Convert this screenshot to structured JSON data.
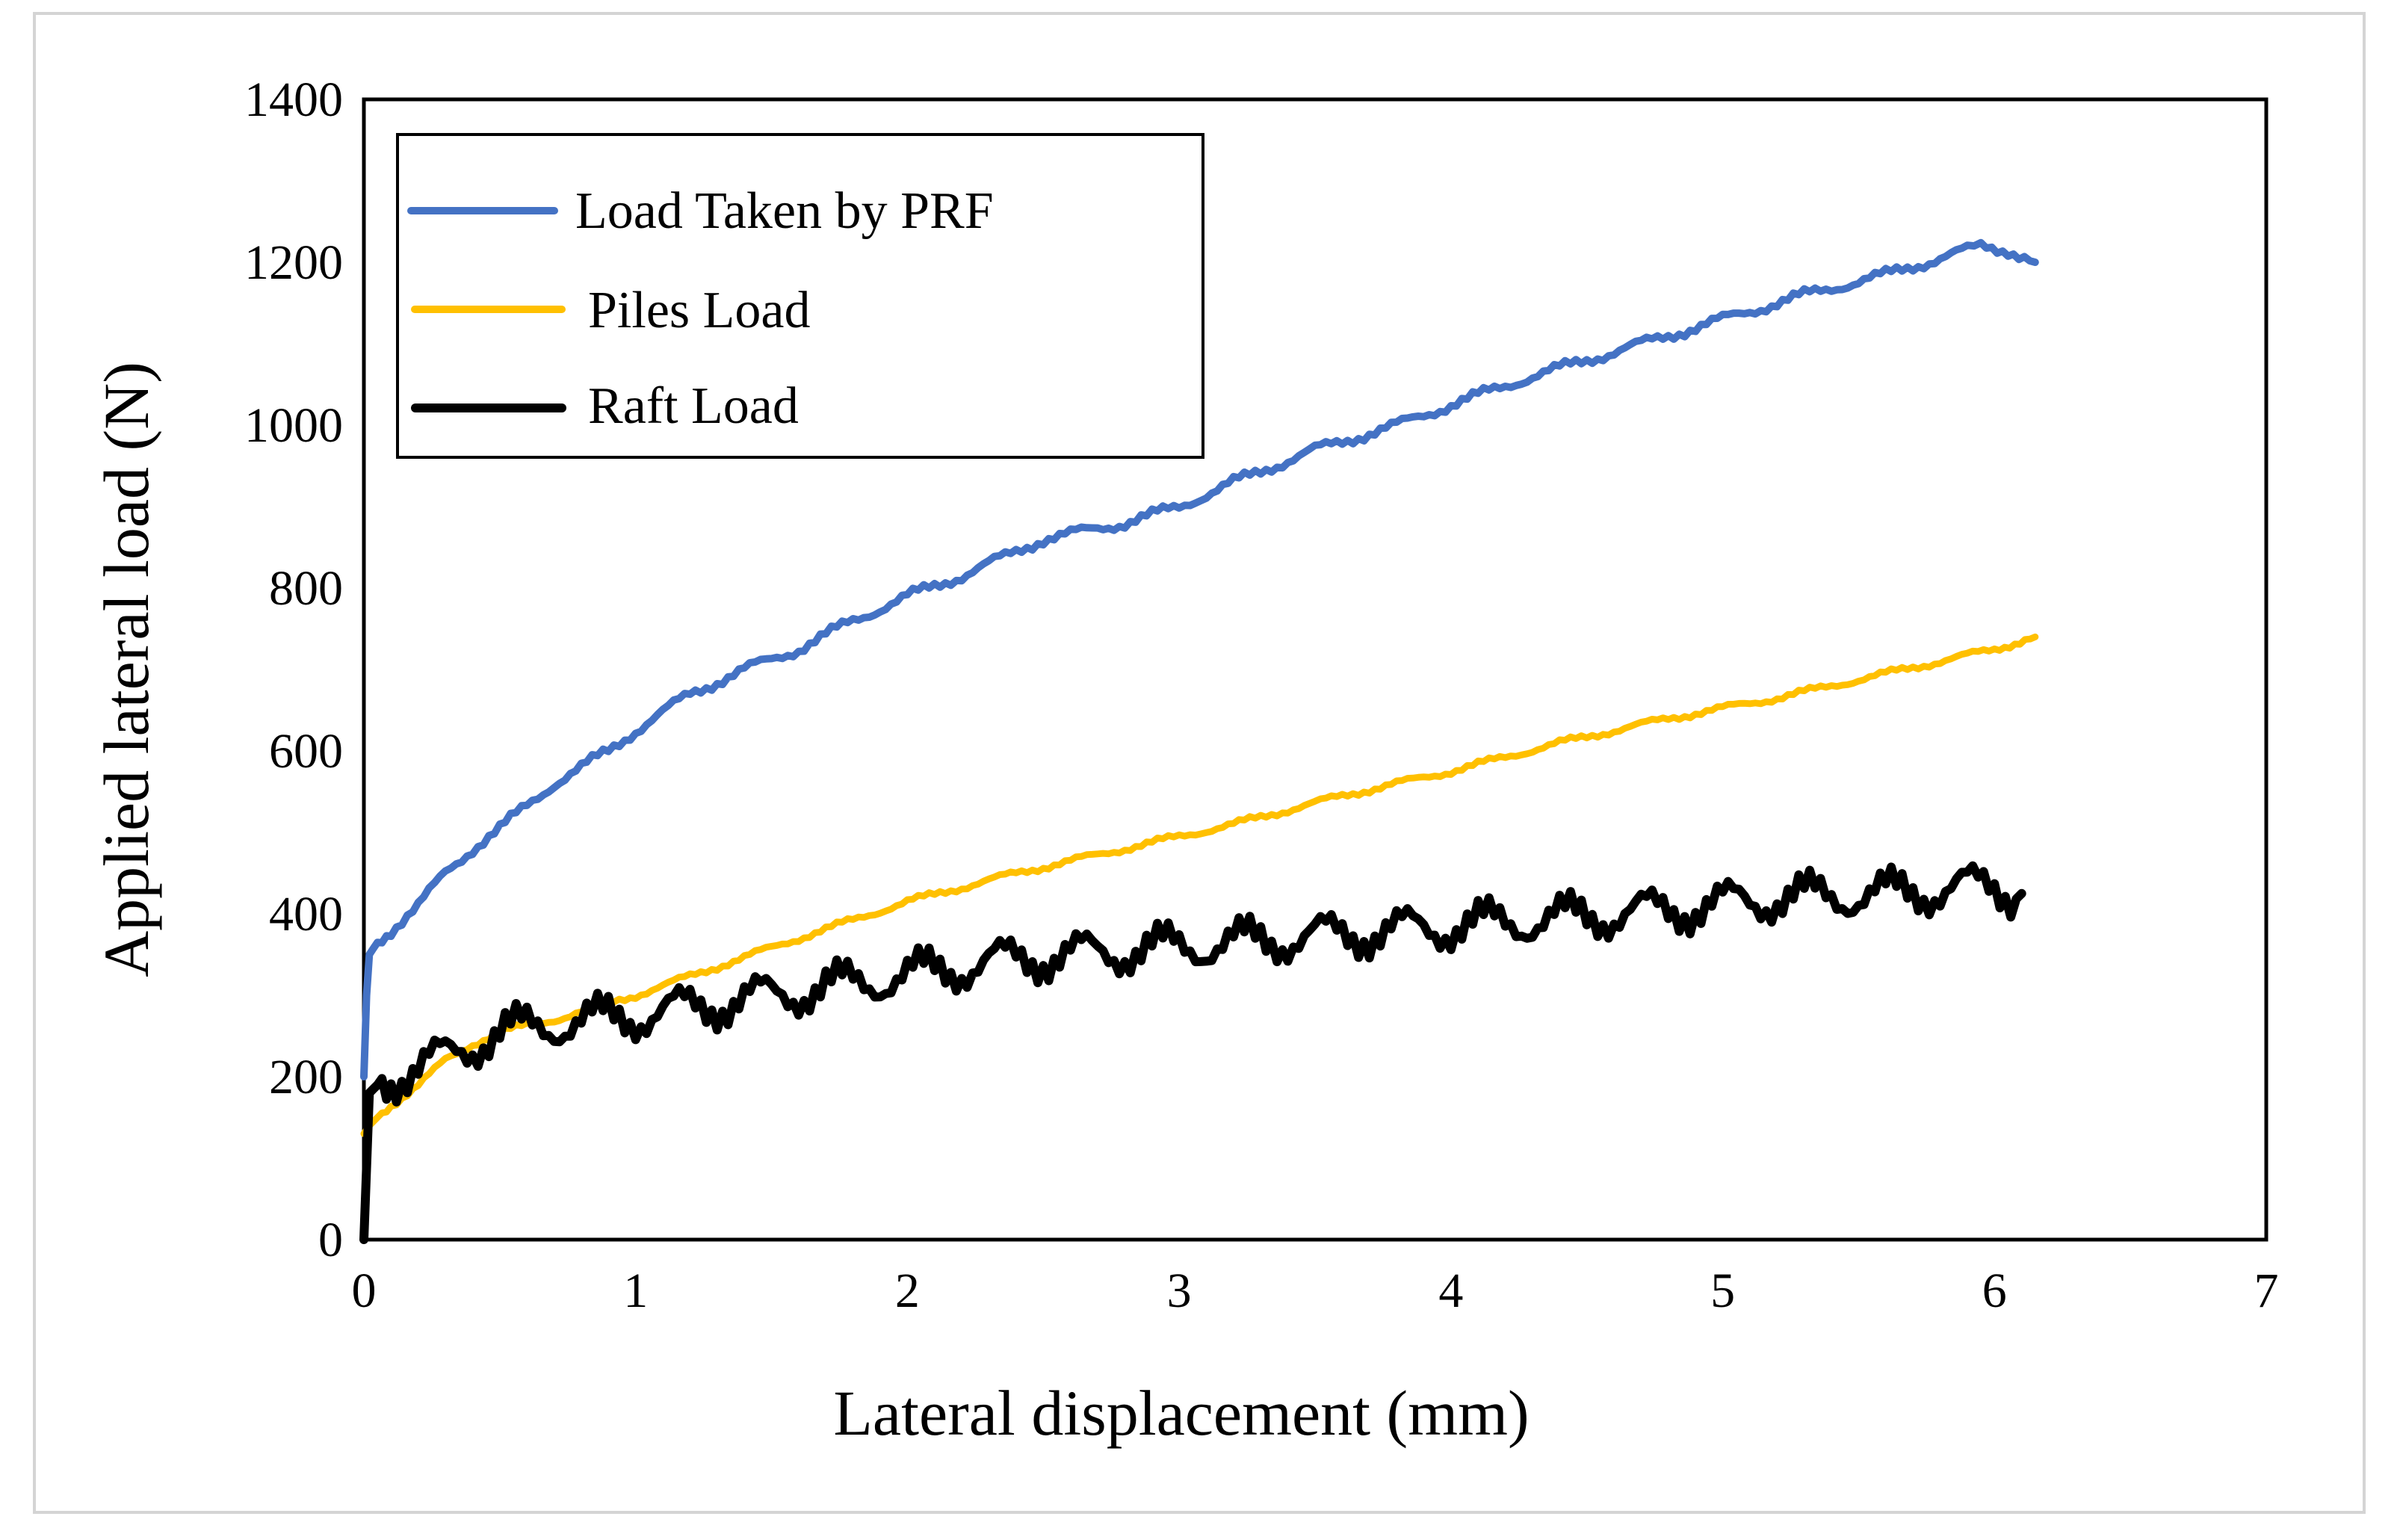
{
  "chart_data": {
    "type": "line",
    "title": "",
    "xlabel": "Lateral displacement (mm)",
    "ylabel": "Applied lateral load (N)",
    "xlim": [
      0,
      7
    ],
    "ylim": [
      0,
      1400
    ],
    "xticks": [
      0,
      1,
      2,
      3,
      4,
      5,
      6,
      7
    ],
    "yticks": [
      0,
      200,
      400,
      600,
      800,
      1000,
      1200,
      1400
    ],
    "grid": false,
    "legend_position": "top-left",
    "series": [
      {
        "name": "Load Taken by PRF",
        "color": "#4472c4",
        "x": [
          0,
          0.01,
          0.02,
          0.05,
          0.1,
          0.2,
          0.3,
          0.4,
          0.5,
          0.7,
          0.9,
          1.0,
          1.2,
          1.4,
          1.6,
          1.8,
          2.0,
          2.2,
          2.5,
          2.8,
          3.0,
          3.2,
          3.5,
          3.8,
          4.0,
          4.3,
          4.6,
          5.0,
          5.3,
          5.6,
          5.9,
          5.95,
          6.05,
          6.15
        ],
        "y": [
          200,
          300,
          350,
          365,
          380,
          410,
          450,
          480,
          505,
          560,
          600,
          625,
          670,
          700,
          725,
          760,
          790,
          815,
          860,
          880,
          900,
          930,
          970,
          1000,
          1025,
          1060,
          1090,
          1130,
          1160,
          1185,
          1215,
          1220,
          1215,
          1200
        ]
      },
      {
        "name": "Piles Load",
        "color": "#ffc000",
        "x": [
          0,
          0.02,
          0.05,
          0.1,
          0.2,
          0.3,
          0.4,
          0.5,
          0.7,
          1.0,
          1.3,
          1.6,
          2.0,
          2.4,
          2.8,
          3.2,
          3.6,
          4.0,
          4.4,
          4.8,
          5.2,
          5.6,
          6.0,
          6.15
        ],
        "y": [
          130,
          140,
          150,
          165,
          190,
          220,
          240,
          255,
          270,
          300,
          335,
          370,
          415,
          450,
          480,
          510,
          545,
          575,
          610,
          640,
          665,
          695,
          725,
          740
        ]
      },
      {
        "name": "Raft Load",
        "color": "#000000",
        "x": [
          0,
          0.02,
          0.05,
          0.1,
          0.2,
          0.3,
          0.4,
          0.5,
          0.7,
          1.0,
          1.3,
          1.6,
          2.0,
          2.4,
          2.8,
          3.2,
          3.6,
          4.0,
          4.4,
          4.8,
          5.2,
          5.6,
          6.0,
          6.1
        ],
        "y": [
          0,
          180,
          190,
          200,
          210,
          225,
          240,
          255,
          265,
          275,
          290,
          305,
          325,
          345,
          355,
          365,
          375,
          385,
          395,
          405,
          420,
          425,
          435,
          425
        ]
      }
    ]
  }
}
